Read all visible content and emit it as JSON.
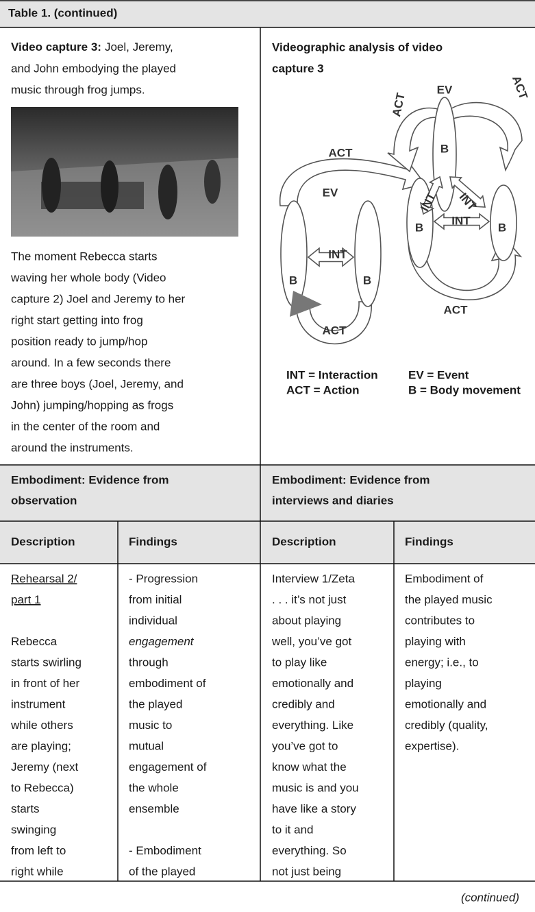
{
  "header": {
    "title": "Table 1. (continued)"
  },
  "video_cell": {
    "caption_label": "Video capture 3:",
    "caption_lines": [
      "Joel, Jeremy,",
      "and John embodying the played",
      "music through frog jumps."
    ],
    "paragraph_lines": [
      "The moment Rebecca starts",
      "waving her whole body (Video",
      "capture 2) Joel and Jeremy to her",
      "right start getting into frog",
      "position ready to jump/hop",
      "around. In a few seconds there",
      "are three boys (Joel, Jeremy, and",
      "John) jumping/hopping as frogs",
      "in the center of the room and",
      "around the instruments."
    ]
  },
  "diagram_cell": {
    "title_lines": [
      "Videographic analysis of video",
      "capture 3"
    ],
    "labels": [
      "EV",
      "ACT",
      "ACT",
      "B",
      "ACT",
      "EV",
      "INT",
      "INT",
      "INT",
      "B",
      "B",
      "INT",
      "B",
      "B",
      "ACT",
      "ACT"
    ],
    "legend": [
      "INT = Interaction",
      "EV = Event",
      "ACT = Action",
      "B = Body movement"
    ]
  },
  "section_headers": [
    {
      "lines": [
        "Embodiment: Evidence from",
        "observation"
      ]
    },
    {
      "lines": [
        "Embodiment: Evidence from",
        "interviews and diaries"
      ]
    }
  ],
  "column_headers": [
    "Description",
    "Findings",
    "Description",
    "Findings"
  ],
  "cells": [
    {
      "heading": [
        "Rehearsal 2/",
        "part 1"
      ],
      "lines": [
        "Rebecca",
        "starts swirling",
        "in front of her",
        "instrument",
        "while others",
        "are playing;",
        "Jeremy (next",
        "to Rebecca)",
        "starts",
        "swinging",
        "from left to",
        "right while"
      ]
    },
    {
      "paragraphs": [
        [
          "- Progression",
          "from initial",
          "individual",
          {
            "text": "engagement",
            "style": "italic"
          },
          "through",
          "embodiment of",
          "the played",
          "music to",
          "mutual",
          "engagement of",
          "the whole",
          "ensemble"
        ],
        [
          "- Embodiment",
          "of the played"
        ]
      ]
    },
    {
      "lines": [
        "Interview 1/Zeta",
        ". . . it’s not just",
        "about playing",
        "well, you’ve got",
        "to play like",
        "emotionally and",
        "credibly and",
        "everything. Like",
        "you’ve got to",
        "know what the",
        "music is and you",
        "have like a story",
        "to it and",
        "everything. So",
        "not just being"
      ]
    },
    {
      "lines": [
        "Embodiment of",
        "the played music",
        "contributes to",
        "playing with",
        "energy; i.e., to",
        "playing",
        "emotionally and",
        "credibly (quality,",
        "expertise)."
      ]
    }
  ],
  "footer": {
    "note": "(continued)"
  }
}
